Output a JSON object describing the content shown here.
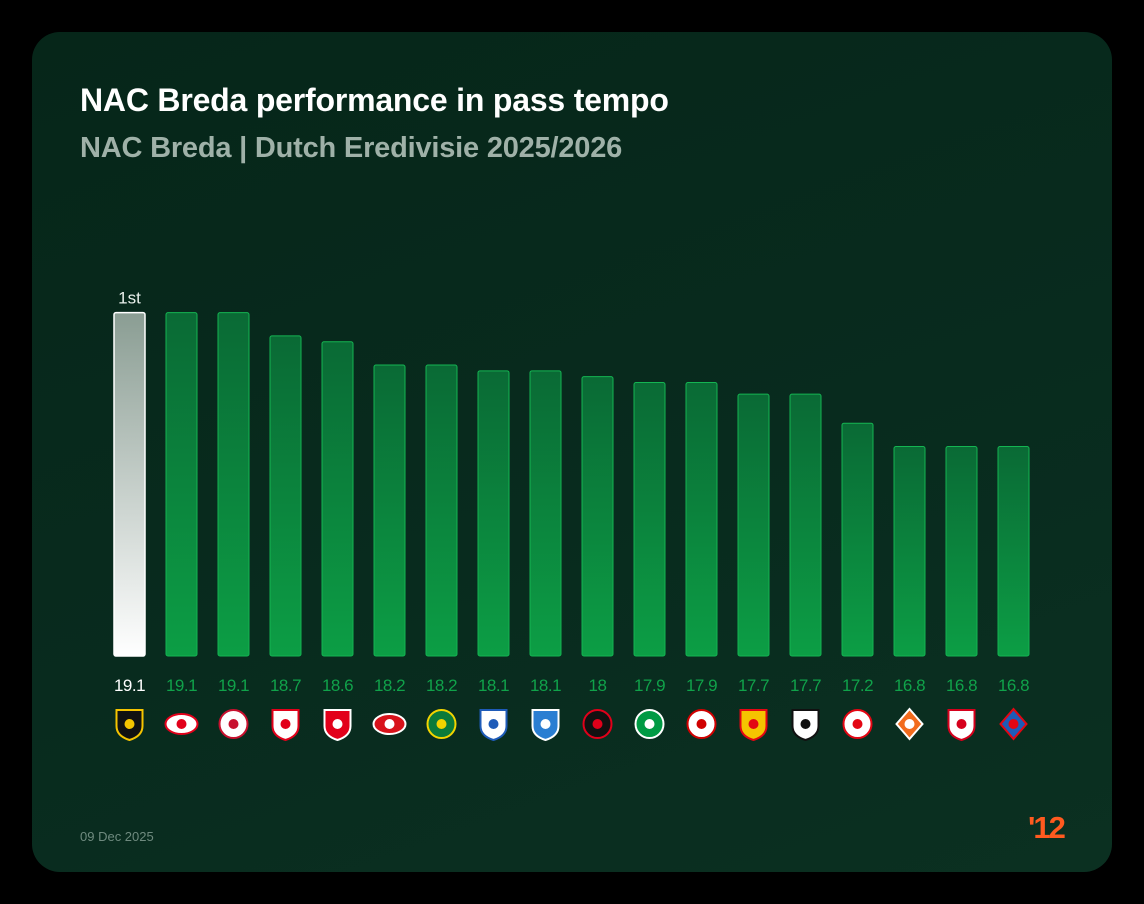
{
  "header": {
    "title": "NAC Breda performance in pass tempo",
    "subtitle": "NAC Breda | Dutch Eredivisie 2025/2026"
  },
  "footer": {
    "date": "09 Dec 2025",
    "brand": "'12"
  },
  "colors": {
    "accent": "#0a9a45",
    "highlight_bar": "#ffffff",
    "value_label": "#0fa14a",
    "brand": "#ff5a1f"
  },
  "chart_data": {
    "type": "bar",
    "title": "NAC Breda performance in pass tempo",
    "subtitle": "NAC Breda | Dutch Eredivisie 2025/2026",
    "rank_label": "1st",
    "highlight_index": 0,
    "values": [
      19.1,
      19.1,
      19.1,
      18.7,
      18.6,
      18.2,
      18.2,
      18.1,
      18.1,
      18,
      17.9,
      17.9,
      17.7,
      17.7,
      17.2,
      16.8,
      16.8,
      16.8
    ],
    "value_labels": [
      "19.1",
      "19.1",
      "19.1",
      "18.7",
      "18.6",
      "18.2",
      "18.2",
      "18.1",
      "18.1",
      "18",
      "17.9",
      "17.9",
      "17.7",
      "17.7",
      "17.2",
      "16.8",
      "16.8",
      "16.8"
    ],
    "icons": [
      {
        "name": "nac-breda-crest-icon",
        "fg": "#f5c400",
        "bg": "#111111",
        "shape": "shield"
      },
      {
        "name": "psv-crest-icon",
        "fg": "#e2001a",
        "bg": "#ffffff",
        "shape": "oval"
      },
      {
        "name": "ajax-crest-icon",
        "fg": "#c8102e",
        "bg": "#ffffff",
        "shape": "circle"
      },
      {
        "name": "fc-utrecht-crest-icon",
        "fg": "#e2001a",
        "bg": "#ffffff",
        "shape": "shield"
      },
      {
        "name": "fc-twente-crest-icon",
        "fg": "#ffffff",
        "bg": "#e2001a",
        "shape": "shield"
      },
      {
        "name": "az-crest-icon",
        "fg": "#ffffff",
        "bg": "#d8121a",
        "shape": "oval"
      },
      {
        "name": "fortuna-sittard-crest-icon",
        "fg": "#f2d400",
        "bg": "#0c7a3a",
        "shape": "circle"
      },
      {
        "name": "heerenveen-crest-icon",
        "fg": "#1e5bb8",
        "bg": "#ffffff",
        "shape": "shield"
      },
      {
        "name": "pec-zwolle-crest-icon",
        "fg": "#ffffff",
        "bg": "#2a7ed2",
        "shape": "shield"
      },
      {
        "name": "feyenoord-crest-icon",
        "fg": "#e0001a",
        "bg": "#111111",
        "shape": "circle"
      },
      {
        "name": "fc-groningen-crest-icon",
        "fg": "#ffffff",
        "bg": "#009a44",
        "shape": "circle"
      },
      {
        "name": "sparta-rotterdam-crest-icon",
        "fg": "#d00000",
        "bg": "#ffffff",
        "shape": "circle"
      },
      {
        "name": "go-ahead-eagles-crest-icon",
        "fg": "#e30613",
        "bg": "#f5c400",
        "shape": "shield"
      },
      {
        "name": "heracles-crest-icon",
        "fg": "#111111",
        "bg": "#ffffff",
        "shape": "shield"
      },
      {
        "name": "excelsior-crest-icon",
        "fg": "#e30613",
        "bg": "#ffffff",
        "shape": "circle"
      },
      {
        "name": "fc-volendam-crest-icon",
        "fg": "#ffffff",
        "bg": "#f26b1d",
        "shape": "diamond"
      },
      {
        "name": "nec-crest-icon",
        "fg": "#d6001c",
        "bg": "#ffffff",
        "shape": "shield"
      },
      {
        "name": "telstar-crest-icon",
        "fg": "#e30613",
        "bg": "#1e5bb8",
        "shape": "diamond"
      }
    ]
  }
}
